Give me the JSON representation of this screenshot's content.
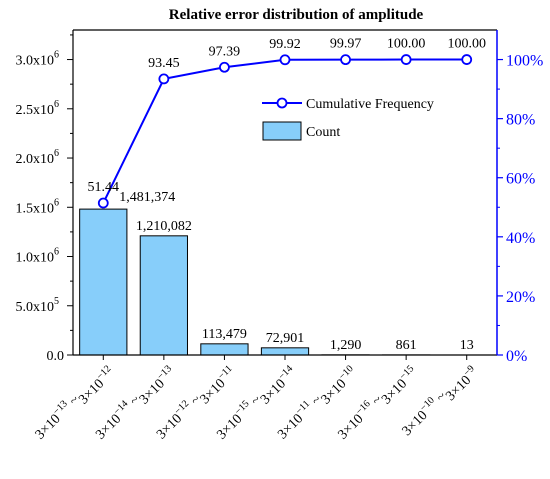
{
  "chart_data": {
    "type": "bar+line",
    "title": "Relative error distribution of amplitude",
    "xlabel": "",
    "ylabel": "",
    "categories": [
      {
        "base": "3×10",
        "a": "−13",
        "b": "−12"
      },
      {
        "base": "3×10",
        "a": "−14",
        "b": "−13"
      },
      {
        "base": "3×10",
        "a": "−12",
        "b": "−11"
      },
      {
        "base": "3×10",
        "a": "−15",
        "b": "−14"
      },
      {
        "base": "3×10",
        "a": "−11",
        "b": "−10"
      },
      {
        "base": "3×10",
        "a": "−16",
        "b": "−15"
      },
      {
        "base": "3×10",
        "a": "−10",
        "b": "−9"
      }
    ],
    "y_left": {
      "ylim": [
        0,
        3300000
      ],
      "ticks": [
        {
          "value": 0,
          "label": "0.0"
        },
        {
          "value": 500000,
          "label": "5.0x10",
          "exp": "5"
        },
        {
          "value": 1000000,
          "label": "1.0x10",
          "exp": "6"
        },
        {
          "value": 1500000,
          "label": "1.5x10",
          "exp": "6"
        },
        {
          "value": 2000000,
          "label": "2.0x10",
          "exp": "6"
        },
        {
          "value": 2500000,
          "label": "2.5x10",
          "exp": "6"
        },
        {
          "value": 3000000,
          "label": "3.0x10",
          "exp": "6"
        }
      ]
    },
    "y_right": {
      "ylim": [
        0,
        110
      ],
      "ticks": [
        {
          "value": 0,
          "label": "0%"
        },
        {
          "value": 20,
          "label": "20%"
        },
        {
          "value": 40,
          "label": "40%"
        },
        {
          "value": 60,
          "label": "60%"
        },
        {
          "value": 80,
          "label": "80%"
        },
        {
          "value": 100,
          "label": "100%"
        }
      ],
      "color": "#0000ff"
    },
    "series": [
      {
        "name": "Count",
        "type": "bar",
        "axis": "left",
        "values": [
          1481374,
          1210082,
          113479,
          72901,
          1290,
          861,
          13
        ],
        "labels": [
          "1,481,374",
          "1,210,082",
          "113,479",
          "72,901",
          "1,290",
          "861",
          "13"
        ],
        "color": "#87cefa"
      },
      {
        "name": "Cumulative Frequency",
        "type": "line",
        "axis": "right",
        "values": [
          51.44,
          93.45,
          97.39,
          99.92,
          99.97,
          100.0,
          100.0
        ],
        "labels": [
          "51.44",
          "93.45",
          "97.39",
          "99.92",
          "99.97",
          "100.00",
          "100.00"
        ],
        "color": "#0000ff"
      }
    ],
    "legend_position": "upper-right-inside",
    "grid": false
  }
}
